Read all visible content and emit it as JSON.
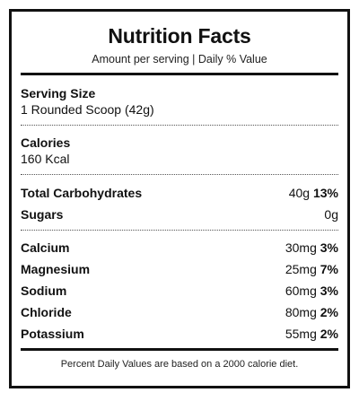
{
  "title": "Nutrition Facts",
  "subtitle": "Amount per serving | Daily % Value",
  "serving": {
    "label": "Serving Size",
    "value": "1 Rounded Scoop (42g)"
  },
  "calories": {
    "label": "Calories",
    "value": "160 Kcal"
  },
  "carbs": [
    {
      "name": "Total Carbohydrates",
      "amount": "40g",
      "dv": "13%"
    },
    {
      "name": "Sugars",
      "amount": "0g",
      "dv": ""
    }
  ],
  "minerals": [
    {
      "name": "Calcium",
      "amount": "30mg",
      "dv": "3%"
    },
    {
      "name": "Magnesium",
      "amount": "25mg",
      "dv": "7%"
    },
    {
      "name": "Sodium",
      "amount": "60mg",
      "dv": "3%"
    },
    {
      "name": "Chloride",
      "amount": "80mg",
      "dv": "2%"
    },
    {
      "name": "Potassium",
      "amount": "55mg",
      "dv": "2%"
    }
  ],
  "footnote": "Percent Daily Values are based on a 2000 calorie diet."
}
